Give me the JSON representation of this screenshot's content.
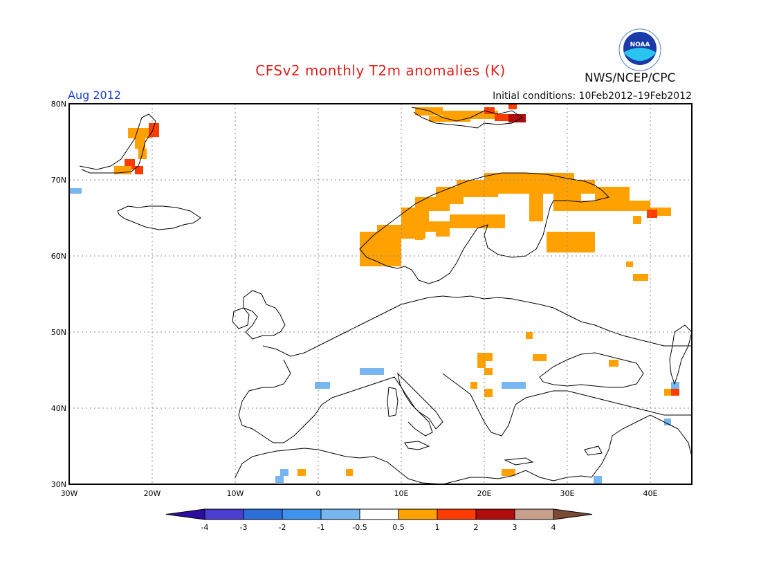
{
  "title": "CFSv2 monthly T2m anomalies (K)",
  "period": "Aug 2012",
  "initial_conditions": "Initial conditions: 10Feb2012–19Feb2012",
  "org": "NWS/NCEP/CPC",
  "logo_text": "NOAA",
  "axes": {
    "lat_ticks": [
      "80N",
      "70N",
      "60N",
      "50N",
      "40N",
      "30N"
    ],
    "lon_ticks": [
      "30W",
      "20W",
      "10W",
      "0",
      "10E",
      "20E",
      "30E",
      "40E"
    ]
  },
  "colorbar": {
    "ticks": [
      "-4",
      "-3",
      "-2",
      "-1",
      "-0.5",
      "0.5",
      "1",
      "2",
      "3",
      "4"
    ],
    "colors": [
      "#2c0fa0",
      "#4a3ed0",
      "#2b6fd9",
      "#3f93ef",
      "#78b6f1",
      "#ffffff",
      "#ffa100",
      "#ff3c00",
      "#b00c0c",
      "#c8a08c",
      "#7a4a35"
    ]
  }
}
